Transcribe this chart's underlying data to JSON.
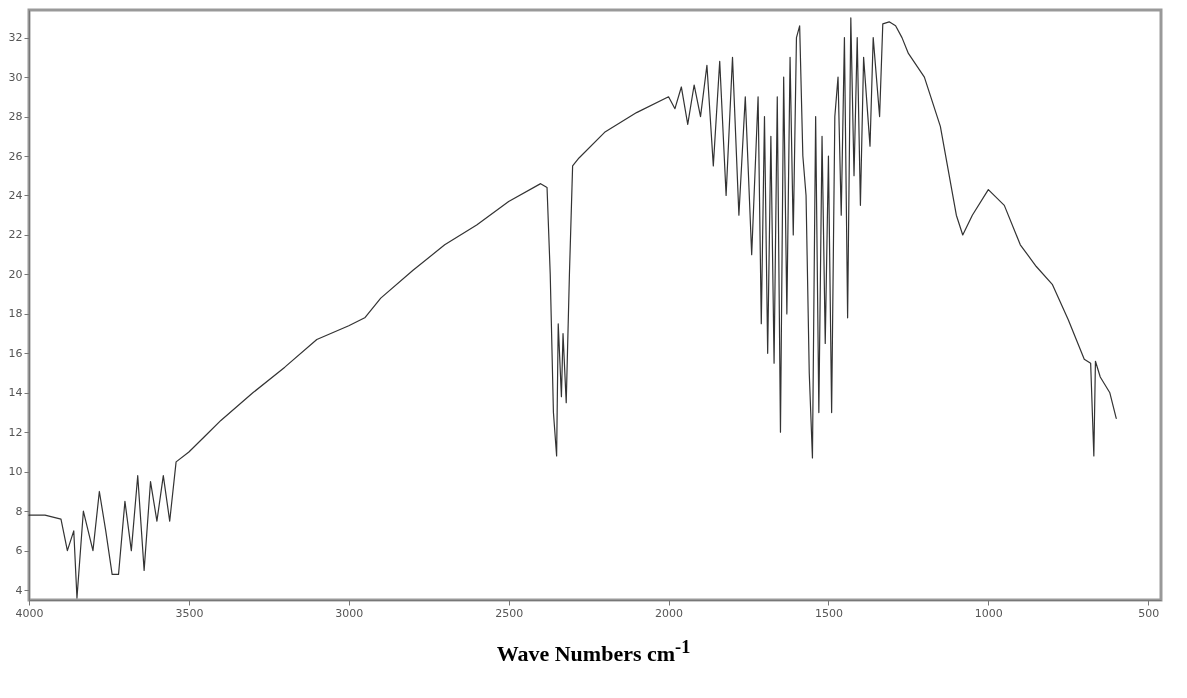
{
  "chart_data": {
    "type": "line",
    "xlabel": "Wave Numbers cm$^{-1}$",
    "x": [
      4000,
      3950,
      3900,
      3880,
      3860,
      3850,
      3830,
      3800,
      3780,
      3760,
      3740,
      3720,
      3700,
      3680,
      3660,
      3640,
      3620,
      3600,
      3580,
      3560,
      3540,
      3500,
      3450,
      3400,
      3300,
      3200,
      3100,
      3000,
      2950,
      2900,
      2800,
      2700,
      2600,
      2500,
      2400,
      2380,
      2370,
      2360,
      2350,
      2345,
      2335,
      2330,
      2320,
      2310,
      2300,
      2280,
      2200,
      2100,
      2000,
      1980,
      1960,
      1940,
      1920,
      1900,
      1880,
      1860,
      1840,
      1820,
      1800,
      1780,
      1760,
      1740,
      1720,
      1710,
      1700,
      1690,
      1680,
      1670,
      1660,
      1650,
      1640,
      1630,
      1620,
      1610,
      1600,
      1590,
      1580,
      1570,
      1560,
      1550,
      1540,
      1530,
      1520,
      1510,
      1500,
      1490,
      1480,
      1470,
      1460,
      1450,
      1440,
      1430,
      1420,
      1410,
      1400,
      1390,
      1370,
      1360,
      1340,
      1330,
      1310,
      1290,
      1270,
      1250,
      1200,
      1150,
      1100,
      1080,
      1050,
      1000,
      950,
      900,
      850,
      800,
      750,
      700,
      680,
      670,
      665,
      650,
      620,
      600
    ],
    "series": [
      {
        "color": "#333333",
        "values": [
          7.8,
          7.8,
          7.6,
          6,
          7,
          3.6,
          8,
          6,
          9,
          7,
          4.8,
          4.8,
          8.5,
          6,
          9.8,
          5,
          9.5,
          7.5,
          9.8,
          7.5,
          10.5,
          11,
          11.8,
          12.6,
          14,
          15.3,
          16.7,
          17.4,
          17.8,
          18.8,
          20.2,
          21.5,
          22.5,
          23.7,
          24.6,
          24.4,
          20,
          13,
          10.8,
          17.5,
          13.8,
          17,
          13.5,
          20,
          25.5,
          25.9,
          27.2,
          28.2,
          29,
          28.4,
          29.5,
          27.6,
          29.6,
          28,
          30.6,
          25.5,
          30.8,
          24,
          31,
          23,
          29,
          21,
          29,
          17.5,
          28,
          16,
          27,
          15.5,
          29,
          12,
          30,
          18,
          31,
          22,
          32,
          32.6,
          26,
          24,
          15,
          10.7,
          28,
          13,
          27,
          16.5,
          26,
          13,
          28,
          30,
          23,
          32,
          17.8,
          33,
          25,
          32,
          23.5,
          31,
          26.5,
          32,
          28,
          32.7,
          32.8,
          32.6,
          32,
          31.2,
          30,
          27.5,
          23,
          22,
          23,
          24.3,
          23.5,
          21.5,
          20.4,
          19.5,
          17.7,
          15.7,
          15.5,
          10.8,
          15.6,
          14.8,
          14,
          12.7
        ]
      }
    ],
    "xlim": [
      4000,
      460
    ],
    "xticks": [
      4000,
      3500,
      3000,
      2500,
      2000,
      1500,
      1000,
      500
    ],
    "ylim": [
      3.5,
      33.4
    ],
    "yticks": [
      4,
      6,
      8,
      10,
      12,
      14,
      16,
      18,
      20,
      22,
      24,
      26,
      28,
      30,
      32
    ],
    "grid": false,
    "marker": "none",
    "line_style": "solid"
  }
}
